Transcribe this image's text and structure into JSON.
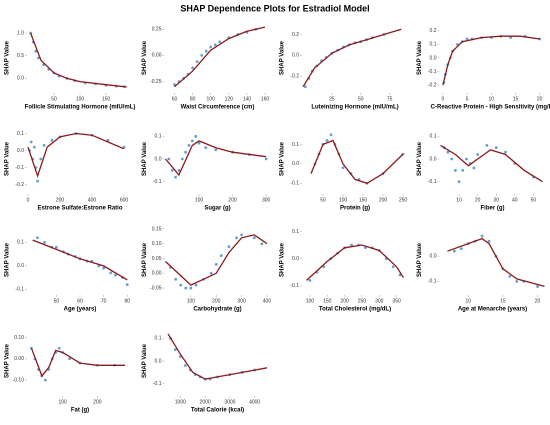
{
  "title": "SHAP Dependence Plots for Estradiol Model",
  "chart_data": [
    {
      "type": "scatter",
      "xlabel": "Follicle Stimulating Hormone (mIU/mL)",
      "ylabel": "SHAP Value",
      "color": "#2f7fc1",
      "fit_color": "#8b1a1a",
      "x": [
        5,
        10,
        15,
        20,
        30,
        40,
        50,
        60,
        75,
        90,
        110,
        130,
        150,
        170,
        185
      ],
      "y": [
        1.0,
        0.8,
        0.6,
        0.45,
        0.3,
        0.2,
        0.12,
        0.05,
        0.0,
        -0.05,
        -0.1,
        -0.12,
        -0.15,
        -0.17,
        -0.18
      ],
      "fit": {
        "x": [
          5,
          25,
          50,
          75,
          100,
          150,
          190
        ],
        "y": [
          1.0,
          0.4,
          0.12,
          0.0,
          -0.07,
          -0.14,
          -0.19
        ]
      },
      "xlim": [
        0,
        200
      ],
      "ylim": [
        -0.3,
        1.2
      ],
      "xticks": [
        50,
        100,
        150
      ],
      "yticks": [
        {
          "value": 0,
          "label": "0.0"
        },
        0.5,
        {
          "value": 1,
          "label": "1.0"
        }
      ]
    },
    {
      "type": "scatter",
      "xlabel": "Waist Circumference (cm)",
      "ylabel": "SHAP Value",
      "color": "#2f7fc1",
      "fit_color": "#8b1a1a",
      "x": [
        60,
        65,
        70,
        75,
        80,
        85,
        90,
        95,
        100,
        105,
        110,
        120,
        130,
        140,
        150
      ],
      "y": [
        -0.28,
        -0.25,
        -0.22,
        -0.18,
        -0.12,
        -0.06,
        0,
        0.04,
        0.08,
        0.1,
        0.13,
        0.17,
        0.2,
        0.22,
        0.25
      ],
      "fit": {
        "x": [
          60,
          80,
          100,
          120,
          140,
          160
        ],
        "y": [
          -0.3,
          -0.15,
          0.05,
          0.16,
          0.23,
          0.27
        ]
      },
      "xlim": [
        50,
        165
      ],
      "ylim": [
        -0.35,
        0.3
      ],
      "xticks": [
        60,
        80,
        100,
        120,
        140,
        160
      ],
      "yticks": [
        -0.25,
        {
          "value": 0,
          "label": "0.00"
        },
        0.25
      ]
    },
    {
      "type": "scatter",
      "xlabel": "Luteinizing Hormone (mIU/mL)",
      "ylabel": "SHAP Value",
      "color": "#2f7fc1",
      "fit_color": "#8b1a1a",
      "x": [
        2,
        5,
        8,
        12,
        16,
        20,
        25,
        30,
        35,
        40,
        45,
        50,
        55,
        60,
        70
      ],
      "y": [
        -0.3,
        -0.22,
        -0.15,
        -0.1,
        -0.05,
        -0.02,
        0.02,
        0.05,
        0.08,
        0.1,
        0.12,
        0.13,
        0.15,
        0.17,
        0.2
      ],
      "fit": {
        "x": [
          0,
          10,
          25,
          40,
          55,
          70,
          85
        ],
        "y": [
          -0.3,
          -0.12,
          0.02,
          0.1,
          0.15,
          0.2,
          0.25
        ]
      },
      "xlim": [
        0,
        90
      ],
      "ylim": [
        -0.35,
        0.3
      ],
      "xticks": [
        25,
        50,
        75
      ],
      "yticks": [
        -0.2,
        {
          "value": 0,
          "label": "0.0"
        },
        0.2
      ]
    },
    {
      "type": "scatter",
      "xlabel": "C-Reactive Protein - High Sensitivity (mg/L)",
      "ylabel": "SHAP Value",
      "color": "#2f7fc1",
      "fit_color": "#8b1a1a",
      "x": [
        0.2,
        0.5,
        1,
        1.5,
        2,
        3,
        4,
        5,
        6,
        8,
        10,
        12,
        14,
        17,
        20
      ],
      "y": [
        -0.18,
        -0.12,
        -0.05,
        0,
        0.05,
        0.1,
        0.12,
        0.14,
        0.14,
        0.15,
        0.15,
        0.16,
        0.15,
        0.16,
        0.14
      ],
      "fit": {
        "x": [
          0,
          1,
          2,
          4,
          8,
          12,
          16,
          20
        ],
        "y": [
          -0.2,
          -0.05,
          0.05,
          0.12,
          0.15,
          0.16,
          0.16,
          0.14
        ]
      },
      "xlim": [
        -0.5,
        21
      ],
      "ylim": [
        -0.25,
        0.25
      ],
      "xticks": [
        0,
        5,
        10,
        15,
        20
      ],
      "yticks": [
        -0.2,
        -0.1,
        {
          "value": 0,
          "label": "0.0"
        },
        0.1,
        0.2
      ]
    },
    {
      "type": "scatter",
      "xlabel": "Estrone Sulfate:Estrone Ratio",
      "ylabel": "SHAP Value",
      "color": "#2f7fc1",
      "fit_color": "#8b1a1a",
      "x": [
        10,
        20,
        30,
        40,
        50,
        60,
        80,
        100,
        150,
        200,
        300,
        400,
        500,
        600
      ],
      "y": [
        0,
        0.05,
        -0.05,
        0.02,
        -0.1,
        -0.18,
        -0.05,
        0.03,
        0.06,
        0.08,
        0.1,
        0.09,
        0.06,
        0.02
      ],
      "fit": {
        "x": [
          0,
          60,
          120,
          200,
          300,
          400,
          500,
          600
        ],
        "y": [
          0.02,
          -0.15,
          0.02,
          0.08,
          0.1,
          0.09,
          0.05,
          0.01
        ]
      },
      "xlim": [
        0,
        650
      ],
      "ylim": [
        -0.25,
        0.15
      ],
      "xticks": [
        0,
        200,
        400,
        600
      ],
      "yticks": [
        -0.2,
        -0.1,
        {
          "value": 0,
          "label": "0.0"
        },
        0.1
      ]
    },
    {
      "type": "scatter",
      "xlabel": "Sugar (g)",
      "ylabel": "SHAP Value",
      "color": "#2f7fc1",
      "fit_color": "#8b1a1a",
      "x": [
        10,
        20,
        30,
        40,
        50,
        60,
        70,
        80,
        90,
        100,
        120,
        150,
        200,
        250,
        300
      ],
      "y": [
        0,
        -0.05,
        -0.08,
        -0.05,
        0,
        0.03,
        0.06,
        0.08,
        0.1,
        0.07,
        0.05,
        0.04,
        0.03,
        0.02,
        0.0
      ],
      "fit": {
        "x": [
          0,
          40,
          80,
          100,
          150,
          200,
          300
        ],
        "y": [
          0.0,
          -0.07,
          0.06,
          0.08,
          0.05,
          0.03,
          0.01
        ]
      },
      "xlim": [
        0,
        310
      ],
      "ylim": [
        -0.15,
        0.15
      ],
      "xticks": [
        100,
        200,
        300
      ],
      "yticks": [
        -0.1,
        {
          "value": 0,
          "label": "0.0"
        },
        0.1
      ]
    },
    {
      "type": "scatter",
      "xlabel": "Protein (g)",
      "ylabel": "SHAP Value",
      "color": "#2f7fc1",
      "fit_color": "#8b1a1a",
      "x": [
        30,
        40,
        50,
        60,
        70,
        80,
        90,
        100,
        120,
        140,
        160,
        200,
        250
      ],
      "y": [
        0,
        0.05,
        0.1,
        0.12,
        0.15,
        0.1,
        0.05,
        -0.02,
        -0.05,
        -0.08,
        -0.1,
        -0.05,
        0.05
      ],
      "fit": {
        "x": [
          20,
          50,
          75,
          100,
          130,
          160,
          200,
          250
        ],
        "y": [
          -0.05,
          0.1,
          0.12,
          0.0,
          -0.08,
          -0.1,
          -0.05,
          0.05
        ]
      },
      "xlim": [
        0,
        260
      ],
      "ylim": [
        -0.15,
        0.2
      ],
      "xticks": [
        50,
        100,
        150,
        200,
        250
      ],
      "yticks": [
        -0.1,
        {
          "value": 0,
          "label": "0.0"
        },
        0.1
      ]
    },
    {
      "type": "scatter",
      "xlabel": "Fiber (g)",
      "ylabel": "SHAP Value",
      "color": "#2f7fc1",
      "fit_color": "#8b1a1a",
      "x": [
        2,
        4,
        6,
        8,
        10,
        12,
        14,
        16,
        18,
        20,
        25,
        30,
        35,
        40,
        50
      ],
      "y": [
        0.05,
        0.03,
        0.0,
        -0.05,
        -0.1,
        -0.05,
        0.0,
        -0.02,
        -0.04,
        0.02,
        0.06,
        0.05,
        0.03,
        -0.02,
        -0.08
      ],
      "fit": {
        "x": [
          0,
          8,
          15,
          20,
          27,
          35,
          45,
          55
        ],
        "y": [
          0.06,
          0.02,
          -0.03,
          0.0,
          0.04,
          0.02,
          -0.05,
          -0.1
        ]
      },
      "xlim": [
        0,
        56
      ],
      "ylim": [
        -0.15,
        0.15
      ],
      "xticks": [
        10,
        20,
        30,
        40,
        50
      ],
      "yticks": [
        -0.1,
        {
          "value": 0,
          "label": "0.0"
        },
        0.1
      ]
    },
    {
      "type": "scatter",
      "xlabel": "Age (years)",
      "ylabel": "SHAP Value",
      "color": "#2f7fc1",
      "fit_color": "#8b1a1a",
      "x": [
        42,
        45,
        48,
        50,
        53,
        55,
        58,
        60,
        63,
        65,
        68,
        70,
        73,
        75,
        78,
        80
      ],
      "y": [
        0.12,
        0.1,
        0.08,
        0.08,
        0.06,
        0.05,
        0.04,
        0.03,
        0.02,
        0.02,
        0.0,
        -0.01,
        -0.03,
        -0.04,
        -0.05,
        -0.08
      ],
      "fit": {
        "x": [
          40,
          50,
          60,
          70,
          80
        ],
        "y": [
          0.11,
          0.07,
          0.03,
          0.0,
          -0.06
        ]
      },
      "xlim": [
        38,
        82
      ],
      "ylim": [
        -0.12,
        0.17
      ],
      "xticks": [
        50,
        60,
        70,
        80
      ],
      "yticks": [
        -0.1,
        {
          "value": 0,
          "label": "0.0"
        },
        0.1
      ]
    },
    {
      "type": "scatter",
      "xlabel": "Carbohydrate (g)",
      "ylabel": "SHAP Value",
      "color": "#2f7fc1",
      "fit_color": "#8b1a1a",
      "x": [
        20,
        40,
        60,
        80,
        100,
        120,
        150,
        180,
        200,
        220,
        250,
        280,
        300,
        350,
        380
      ],
      "y": [
        0.02,
        -0.02,
        -0.04,
        -0.05,
        -0.05,
        -0.04,
        -0.02,
        0.0,
        0.03,
        0.06,
        0.09,
        0.12,
        0.13,
        0.12,
        0.1
      ],
      "fit": {
        "x": [
          0,
          100,
          200,
          250,
          300,
          350,
          400
        ],
        "y": [
          0.04,
          -0.04,
          0.0,
          0.07,
          0.12,
          0.13,
          0.1
        ]
      },
      "xlim": [
        0,
        410
      ],
      "ylim": [
        -0.07,
        0.16
      ],
      "xticks": [
        100,
        200,
        300,
        400
      ],
      "yticks": [
        -0.05,
        {
          "value": 0,
          "label": "0.00"
        },
        0.05,
        {
          "value": 0.1,
          "label": "0.10"
        },
        0.15
      ]
    },
    {
      "type": "scatter",
      "xlabel": "Total Cholesterol (mg/dL)",
      "ylabel": "SHAP Value",
      "color": "#2f7fc1",
      "fit_color": "#8b1a1a",
      "x": [
        100,
        120,
        140,
        160,
        180,
        200,
        220,
        240,
        260,
        280,
        300,
        320,
        340,
        360
      ],
      "y": [
        -0.08,
        -0.05,
        -0.03,
        0.0,
        0.02,
        0.04,
        0.05,
        0.05,
        0.04,
        0.04,
        0.03,
        0.0,
        -0.03,
        -0.06
      ],
      "fit": {
        "x": [
          90,
          150,
          200,
          250,
          300,
          350,
          370
        ],
        "y": [
          -0.08,
          -0.01,
          0.04,
          0.05,
          0.03,
          -0.03,
          -0.07
        ]
      },
      "xlim": [
        80,
        380
      ],
      "ylim": [
        -0.13,
        0.12
      ],
      "xticks": [
        100,
        150,
        200,
        250,
        300,
        350
      ],
      "yticks": [
        -0.1,
        {
          "value": 0,
          "label": "0.0"
        },
        0.1
      ]
    },
    {
      "type": "scatter",
      "xlabel": "Age at Menarche (years)",
      "ylabel": "SHAP Value",
      "color": "#2f7fc1",
      "fit_color": "#8b1a1a",
      "x": [
        8,
        9,
        10,
        11,
        12,
        13,
        14,
        15,
        16,
        17,
        18,
        20
      ],
      "y": [
        0.02,
        0.03,
        0.05,
        0.06,
        0.08,
        0.06,
        0.0,
        -0.05,
        -0.08,
        -0.1,
        -0.1,
        -0.12
      ],
      "fit": {
        "x": [
          7,
          10,
          12,
          13,
          15,
          17,
          21
        ],
        "y": [
          0.02,
          0.05,
          0.07,
          0.05,
          -0.05,
          -0.09,
          -0.12
        ]
      },
      "xlim": [
        6,
        21
      ],
      "ylim": [
        -0.15,
        0.12
      ],
      "xticks": [
        10,
        15,
        20
      ],
      "yticks": [
        -0.1,
        {
          "value": 0,
          "label": "0.0"
        }
      ]
    },
    {
      "type": "scatter",
      "xlabel": "Fat (g)",
      "ylabel": "SHAP Value",
      "color": "#2f7fc1",
      "fit_color": "#8b1a1a",
      "x": [
        10,
        20,
        30,
        40,
        50,
        60,
        70,
        80,
        90,
        100,
        120,
        150,
        200,
        250
      ],
      "y": [
        0.05,
        0.0,
        -0.05,
        -0.08,
        -0.1,
        -0.05,
        0.0,
        0.03,
        0.05,
        0.03,
        0.0,
        -0.02,
        -0.03,
        -0.03
      ],
      "fit": {
        "x": [
          10,
          40,
          60,
          80,
          100,
          150,
          200,
          280
        ],
        "y": [
          0.05,
          -0.08,
          -0.04,
          0.04,
          0.03,
          -0.02,
          -0.03,
          -0.03
        ]
      },
      "xlim": [
        0,
        300
      ],
      "ylim": [
        -0.17,
        0.15
      ],
      "xticks": [
        100,
        200
      ],
      "yticks": [
        {
          "value": -0.1,
          "label": "-0.10"
        },
        {
          "value": 0,
          "label": "0.00"
        },
        {
          "value": 0.1,
          "label": "0.10"
        }
      ]
    },
    {
      "type": "scatter",
      "xlabel": "Total Calorie (kcal)",
      "ylabel": "SHAP Value",
      "color": "#2f7fc1",
      "fit_color": "#8b1a1a",
      "x": [
        600,
        800,
        1000,
        1200,
        1400,
        1600,
        1800,
        2000,
        2200,
        2500,
        3000,
        3500,
        4000
      ],
      "y": [
        0.1,
        0.05,
        0.02,
        -0.02,
        -0.04,
        -0.06,
        -0.07,
        -0.08,
        -0.08,
        -0.07,
        -0.06,
        -0.05,
        -0.04
      ],
      "fit": {
        "x": [
          500,
          1000,
          1500,
          2000,
          2500,
          3000,
          4000,
          4500
        ],
        "y": [
          0.12,
          0.03,
          -0.05,
          -0.08,
          -0.07,
          -0.06,
          -0.04,
          -0.03
        ]
      },
      "xlim": [
        400,
        4600
      ],
      "ylim": [
        -0.15,
        0.15
      ],
      "xticks": [
        1000,
        2000,
        3000,
        4000
      ],
      "yticks": [
        -0.1,
        {
          "value": 0,
          "label": "0.0"
        },
        0.1
      ]
    }
  ]
}
